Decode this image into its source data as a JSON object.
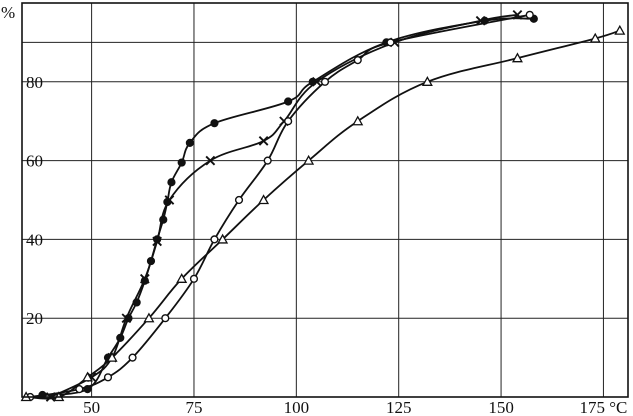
{
  "chart_data": {
    "type": "line",
    "title": "",
    "xlabel": "",
    "ylabel": "",
    "x_unit": "°C",
    "y_unit": "%",
    "xlim": [
      33,
      181
    ],
    "ylim": [
      0,
      100
    ],
    "x_ticks": [
      50,
      75,
      100,
      125,
      150,
      175
    ],
    "x_tick_labels": [
      "50",
      "75",
      "100",
      "125",
      "150",
      "175 °C"
    ],
    "y_ticks": [
      20,
      40,
      60,
      80
    ],
    "y_tick_labels": [
      "20",
      "40",
      "60",
      "80"
    ],
    "grid": true,
    "legend": "none",
    "series": [
      {
        "marker": "filled-circle",
        "color": "#111111",
        "x": [
          38,
          49,
          54,
          57,
          59,
          61,
          63,
          64.5,
          66,
          67.5,
          68.5,
          69.5,
          72,
          74,
          80,
          98,
          104,
          122,
          146,
          158
        ],
        "y": [
          0.5,
          2,
          10,
          15,
          20,
          24,
          29.5,
          34.5,
          40,
          45,
          49.5,
          54.5,
          59.5,
          64.5,
          69.5,
          75,
          80,
          90,
          95.5,
          96
        ]
      },
      {
        "marker": "cross",
        "color": "#111111",
        "x": [
          40,
          50,
          55,
          58.5,
          63,
          66,
          69,
          79,
          92,
          97,
          105,
          124,
          145,
          154
        ],
        "y": [
          0,
          5,
          10,
          20,
          30,
          39.5,
          50,
          60,
          65,
          70,
          80,
          90,
          95.5,
          97
        ]
      },
      {
        "marker": "open-circle",
        "color": "#111111",
        "x": [
          35,
          47,
          54,
          60,
          68,
          75,
          80,
          86,
          93,
          98,
          107,
          115,
          123,
          157
        ],
        "y": [
          0,
          2,
          5,
          10,
          20,
          30,
          40,
          50,
          60,
          70,
          80,
          85.5,
          90,
          97
        ]
      },
      {
        "marker": "open-triangle",
        "color": "#111111",
        "x": [
          34,
          42,
          49,
          55,
          64,
          72,
          82,
          92,
          103,
          115,
          132,
          154,
          173,
          179
        ],
        "y": [
          0,
          0,
          5,
          10,
          20,
          30,
          40,
          50,
          60,
          70,
          80,
          86,
          91,
          93
        ]
      }
    ]
  }
}
